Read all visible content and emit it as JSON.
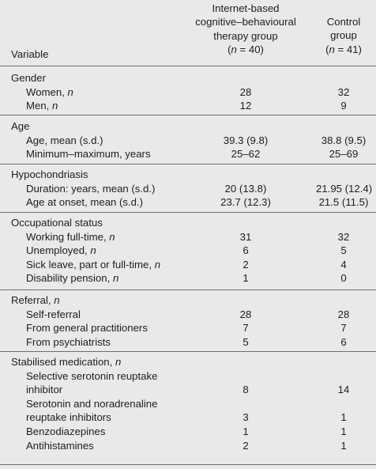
{
  "header": {
    "variable": "Variable",
    "col1": {
      "line1": "Internet-based",
      "line2": "cognitive–behavioural",
      "line3": "therapy group",
      "n": "(n = 40)"
    },
    "col2": {
      "line1": "Control",
      "line2": "group",
      "n": "(n = 41)"
    }
  },
  "sections": [
    {
      "title": "Gender",
      "rows": [
        {
          "label": "Women, n",
          "v1": "28",
          "v2": "32"
        },
        {
          "label": "Men, n",
          "v1": "12",
          "v2": "9"
        }
      ]
    },
    {
      "title": "Age",
      "rows": [
        {
          "label": "Age, mean (s.d.)",
          "v1": "39.3 (9.8)",
          "v2": "38.8 (9.5)"
        },
        {
          "label": "Minimum–maximum, years",
          "v1": "25–62",
          "v2": "25–69"
        }
      ]
    },
    {
      "title": "Hypochondriasis",
      "rows": [
        {
          "label": "Duration: years, mean (s.d.)",
          "v1": "20 (13.8)",
          "v2": "21.95 (12.4)"
        },
        {
          "label": "Age at onset, mean (s.d.)",
          "v1": "23.7 (12.3)",
          "v2": "21.5 (11.5)"
        }
      ]
    },
    {
      "title": "Occupational status",
      "rows": [
        {
          "label": "Working full-time, n",
          "v1": "31",
          "v2": "32"
        },
        {
          "label": "Unemployed, n",
          "v1": "6",
          "v2": "5"
        },
        {
          "label": "Sick leave, part or full-time, n",
          "v1": "2",
          "v2": "4"
        },
        {
          "label": "Disability pension, n",
          "v1": "1",
          "v2": "0"
        }
      ]
    },
    {
      "title": "Referral, n",
      "rows": [
        {
          "label": "Self-referral",
          "v1": "28",
          "v2": "28"
        },
        {
          "label": "From general practitioners",
          "v1": "7",
          "v2": "7"
        },
        {
          "label": "From psychiatrists",
          "v1": "5",
          "v2": "6"
        }
      ]
    },
    {
      "title": "Stabilised medication, n",
      "rows": [
        {
          "label_line1": "Selective serotonin reuptake",
          "label_line2": "inhibitor",
          "v1": "8",
          "v2": "14"
        },
        {
          "label_line1": "Serotonin and noradrenaline",
          "label_line2": "reuptake inhibitors",
          "v1": "3",
          "v2": "1"
        },
        {
          "label": "Benzodiazepines",
          "v1": "1",
          "v2": "1"
        },
        {
          "label": "Antihistamines",
          "v1": "2",
          "v2": "1"
        }
      ]
    }
  ]
}
